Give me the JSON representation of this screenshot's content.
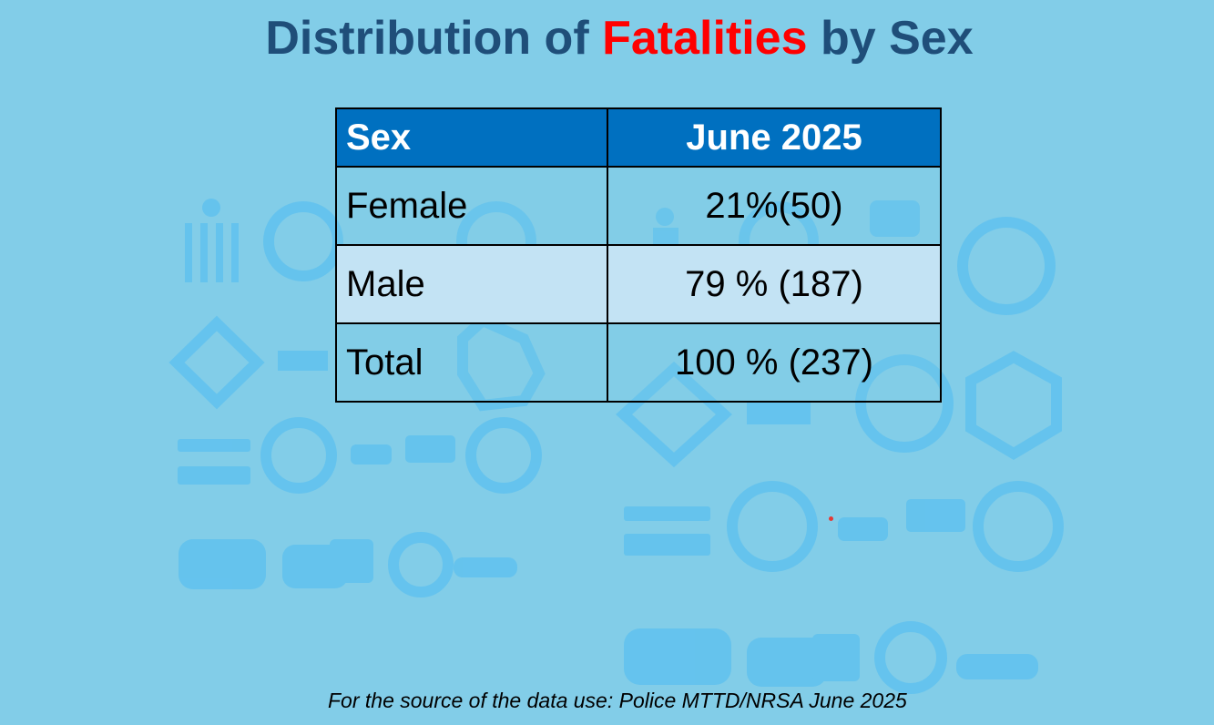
{
  "title": {
    "before": "Distribution of ",
    "accent": "Fatalities",
    "after": " by Sex"
  },
  "table": {
    "headers": [
      "Sex",
      "June 2025"
    ],
    "rows": [
      [
        "Female",
        "21%(50)"
      ],
      [
        "Male",
        "79 % (187)"
      ],
      [
        "Total",
        "100 % (237)"
      ]
    ]
  },
  "source": "For the source of the data use: Police MTTD/NRSA June 2025",
  "colors": {
    "background": "#82cde8",
    "title": "#1f4e79",
    "accent": "#ff0000",
    "header_fill": "#0070c0",
    "icon_tint": "#5fc0ee"
  },
  "background_icons": [
    "pedestrian-crossing",
    "no-parking",
    "parking",
    "stop-sign",
    "school-crossing",
    "traffic-camera",
    "railroad-crossing",
    "tow-truck",
    "no-trucks",
    "car",
    "locked-car",
    "wheelchair",
    "scooter",
    "turn-right-sign"
  ]
}
